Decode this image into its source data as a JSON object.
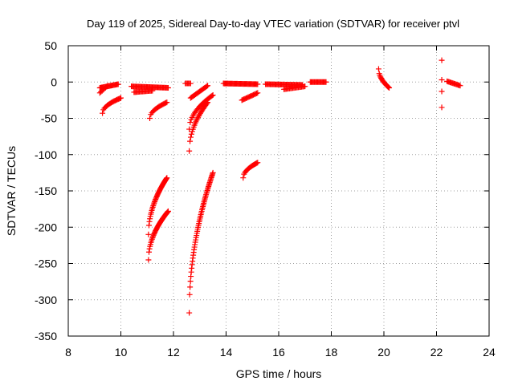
{
  "chart_data": {
    "type": "scatter",
    "title": "Day 119 of 2025, Sidereal Day-to-day VTEC variation (SDTVAR) for receiver ptvl",
    "xlabel": "GPS time / hours",
    "ylabel": "SDTVAR / TECUs",
    "xlim": [
      8,
      24
    ],
    "ylim": [
      -350,
      50
    ],
    "xticks": [
      8,
      10,
      12,
      14,
      16,
      18,
      20,
      22,
      24
    ],
    "yticks": [
      50,
      0,
      -50,
      -100,
      -150,
      -200,
      -250,
      -300,
      -350
    ],
    "grid": true,
    "marker": "plus",
    "marker_color": "#ff0000",
    "series": [
      {
        "name": "near-zero band 9.2-9.9h",
        "x_start": 9.2,
        "x_end": 9.9,
        "y_start": -8,
        "y_end": -3,
        "count": 22
      },
      {
        "name": "near-zero band 10.4-11.8h",
        "x_start": 10.4,
        "x_end": 11.8,
        "y_start": -6,
        "y_end": -8,
        "count": 40
      },
      {
        "name": "near-zero band 10.5-11.2h low",
        "x_start": 10.5,
        "x_end": 11.2,
        "y_start": -14,
        "y_end": -12,
        "count": 18
      },
      {
        "name": "near-zero cluster 12.5h",
        "x_start": 12.45,
        "x_end": 12.65,
        "y_start": -2,
        "y_end": -2,
        "count": 6
      },
      {
        "name": "near-zero band 13.9-15.2h",
        "x_start": 13.9,
        "x_end": 15.2,
        "y_start": -2,
        "y_end": -3,
        "count": 40
      },
      {
        "name": "near-zero band 15.5-16.9h",
        "x_start": 15.5,
        "x_end": 16.9,
        "y_start": -3,
        "y_end": -4,
        "count": 40
      },
      {
        "name": "near-zero band 16.2-17.0h low",
        "x_start": 16.2,
        "x_end": 17.0,
        "y_start": -10,
        "y_end": -6,
        "count": 20
      },
      {
        "name": "near-zero band 17.2-17.8h",
        "x_start": 17.2,
        "x_end": 17.8,
        "y_start": 0,
        "y_end": 0,
        "count": 18
      },
      {
        "name": "arc 9.2-9.5h",
        "x_start": 9.2,
        "x_end": 9.5,
        "y_start": -15,
        "y_end": -5,
        "count": 8
      },
      {
        "name": "arc 9.3-10.0h",
        "x_start": 9.3,
        "x_end": 10.0,
        "y_start": -43,
        "y_end": -22,
        "count": 20
      },
      {
        "name": "arc 11.1-11.8h",
        "x_start": 11.1,
        "x_end": 11.75,
        "y_start": -50,
        "y_end": -28,
        "count": 18
      },
      {
        "name": "arc 12.6-13.3h",
        "x_start": 12.65,
        "x_end": 13.3,
        "y_start": -22,
        "y_end": -5,
        "count": 18
      },
      {
        "name": "arc 12.6-13.5h",
        "x_start": 12.6,
        "x_end": 13.5,
        "y_start": -65,
        "y_end": -18,
        "count": 26
      },
      {
        "name": "arc 12.6-13.3h deep",
        "x_start": 12.6,
        "x_end": 13.3,
        "y_start": -95,
        "y_end": -28,
        "count": 26
      },
      {
        "name": "arc 14.6-15.2h",
        "x_start": 14.6,
        "x_end": 15.2,
        "y_start": -25,
        "y_end": -15,
        "count": 16
      },
      {
        "name": "arc 14.6-15.2h deep",
        "x_start": 14.65,
        "x_end": 15.2,
        "y_start": -132,
        "y_end": -111,
        "count": 18
      },
      {
        "name": "deep arc 11.0-11.75h",
        "x_start": 11.05,
        "x_end": 11.75,
        "y_start": -210,
        "y_end": -132,
        "count": 40
      },
      {
        "name": "deep arc 11.0-11.8h",
        "x_start": 11.05,
        "x_end": 11.8,
        "y_start": -245,
        "y_end": -178,
        "count": 40
      },
      {
        "name": "deep arc 12.55-13.5h",
        "x_start": 12.6,
        "x_end": 13.5,
        "y_start": -318,
        "y_end": -125,
        "count": 60
      },
      {
        "name": "cluster 19.8-20.2h",
        "x_start": 19.8,
        "x_end": 20.2,
        "y_start": 18,
        "y_end": -8,
        "count": 18
      },
      {
        "name": "points 22.2h",
        "x_start": 22.2,
        "x_end": 22.2,
        "y_values": [
          30,
          3,
          -13,
          -35
        ],
        "count": 4
      },
      {
        "name": "band 22.4-22.9h",
        "x_start": 22.4,
        "x_end": 22.9,
        "y_start": 1,
        "y_end": -5,
        "count": 14
      }
    ]
  }
}
